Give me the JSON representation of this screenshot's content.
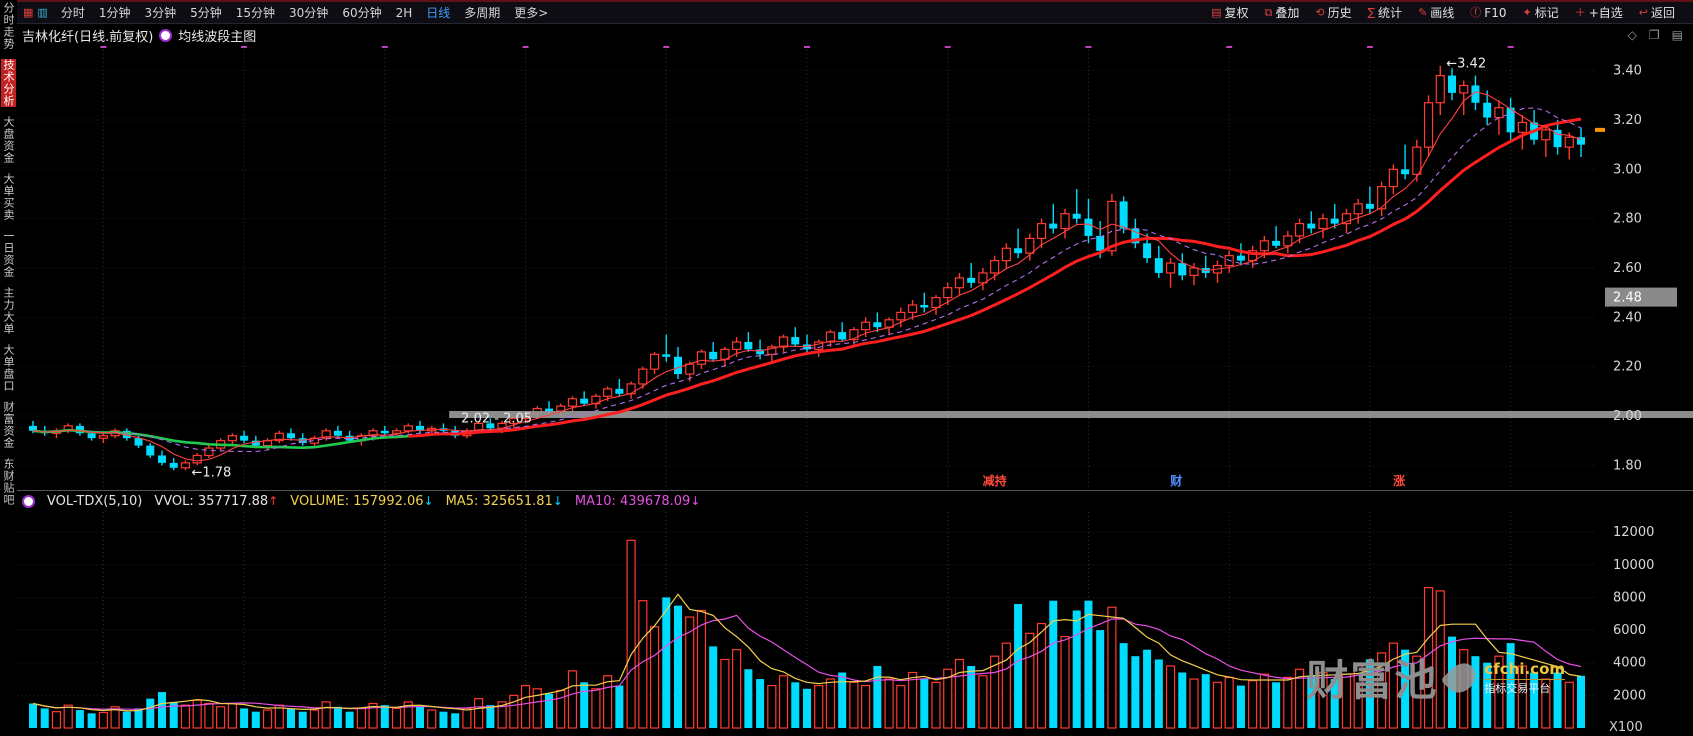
{
  "toolbar": {
    "left_icons": [
      {
        "name": "grid-icon",
        "glyph": "▦",
        "color": "#e04040"
      },
      {
        "name": "kline-icon",
        "glyph": "▥",
        "color": "#38b6d8"
      }
    ],
    "left_items": [
      "分时",
      "1分钟",
      "3分钟",
      "5分钟",
      "15分钟",
      "30分钟",
      "60分钟",
      "2H",
      "日线",
      "多周期",
      "更多>"
    ],
    "active_item": "日线",
    "right_items": [
      {
        "label": "复权",
        "icon": "adjust-icon",
        "glyph": "▤"
      },
      {
        "label": "叠加",
        "icon": "overlay-icon",
        "glyph": "⧉"
      },
      {
        "label": "历史",
        "icon": "history-icon",
        "glyph": "⟲"
      },
      {
        "label": "统计",
        "icon": "stats-icon",
        "glyph": "∑"
      },
      {
        "label": "画线",
        "icon": "draw-line-icon",
        "glyph": "✎"
      },
      {
        "label": "F10",
        "icon": "f10-icon",
        "glyph": "ⓕ"
      },
      {
        "label": "标记",
        "icon": "mark-icon",
        "glyph": "✦"
      },
      {
        "label": "+自选",
        "icon": "add-favorite-icon",
        "glyph": "＋"
      },
      {
        "label": "返回",
        "icon": "back-icon",
        "glyph": "↩"
      }
    ]
  },
  "sidebar": {
    "items": [
      "分时走势",
      "技术分析",
      "大盘资金",
      "大单买卖",
      "一日资金",
      "主力大单",
      "大单盘口",
      "财富资金",
      "东财贴吧"
    ],
    "active": "技术分析"
  },
  "chart_header": {
    "title": "吉林化纤(日线.前复权)",
    "indicator": "均线波段主图",
    "corner_icons": [
      {
        "name": "diamond-icon",
        "glyph": "◇"
      },
      {
        "name": "restore-window-icon",
        "glyph": "❐"
      },
      {
        "name": "panel-icon",
        "glyph": "▤"
      }
    ]
  },
  "volume_header": {
    "indicator": "VOL-TDX(5,10)",
    "vvol": "VVOL: 357717.88",
    "volume": "VOLUME: 157992.06",
    "ma5": "MA5: 325651.81",
    "ma10": "MA10: 439678.09"
  },
  "watermark": {
    "name": "财富池",
    "domain": "cfchi.com",
    "tagline": "指标交易平台"
  },
  "colors": {
    "up": "#ff3b30",
    "down": "#00dcff",
    "ma_fast": "#ff4040",
    "ma_mid": "#b06ef0",
    "trend_up": "#ff1f1f",
    "trend_down": "#1ecb4f",
    "vol_ma5": "#f2d14b",
    "vol_ma10": "#e750e7",
    "band": "#9b9b9b",
    "grid": "#262626",
    "vgrid": "#2e2e2e",
    "axis_text": "#d8d8d8",
    "tick_magenta": "#c040c0",
    "last_price": "#ff9500",
    "highlight_box": "#8a8a8a"
  },
  "chart_data": {
    "type": "candlestick",
    "symbol": "吉林化纤",
    "period": "日线",
    "adjust": "前复权",
    "price_range": [
      1.7,
      3.5
    ],
    "price_gridlines": [
      1.8,
      2.0,
      2.2,
      2.4,
      2.6,
      2.8,
      3.0,
      3.2,
      3.4
    ],
    "axis_highlight_price": 2.48,
    "last_price_tick": 3.16,
    "support_band": {
      "price": 2.0,
      "start_index": 36
    },
    "annotations": [
      {
        "text": "←1.78",
        "i": 13,
        "price": 1.77
      },
      {
        "text": "2.02 - 2.05",
        "i": 36,
        "price": 1.99
      },
      {
        "text": "←3.42",
        "i": 120,
        "price": 3.43
      }
    ],
    "events": [
      {
        "label": "减持",
        "i": 82,
        "color": "#ff4a3a"
      },
      {
        "label": "财",
        "i": 98,
        "color": "#4f8fff"
      },
      {
        "label": "涨",
        "i": 117,
        "color": "#ff4a3a"
      }
    ],
    "trend_split_index": 32,
    "ma_periods": {
      "fast": 5,
      "mid": 10,
      "slow": 15
    },
    "volume_range": [
      0,
      12500
    ],
    "volume_gridlines": [
      2000,
      4000,
      6000,
      8000,
      10000,
      12000
    ],
    "volume_unit": "X100",
    "volume_ma_periods": [
      5,
      10
    ],
    "candles": [
      [
        1.96,
        1.98,
        1.93,
        1.94
      ],
      [
        1.94,
        1.96,
        1.92,
        1.93
      ],
      [
        1.93,
        1.95,
        1.91,
        1.94
      ],
      [
        1.94,
        1.97,
        1.93,
        1.96
      ],
      [
        1.96,
        1.97,
        1.92,
        1.93
      ],
      [
        1.93,
        1.94,
        1.9,
        1.91
      ],
      [
        1.91,
        1.93,
        1.89,
        1.92
      ],
      [
        1.92,
        1.95,
        1.91,
        1.94
      ],
      [
        1.94,
        1.95,
        1.9,
        1.91
      ],
      [
        1.91,
        1.92,
        1.87,
        1.88
      ],
      [
        1.88,
        1.89,
        1.83,
        1.84
      ],
      [
        1.84,
        1.86,
        1.8,
        1.81
      ],
      [
        1.81,
        1.83,
        1.78,
        1.79
      ],
      [
        1.79,
        1.82,
        1.78,
        1.81
      ],
      [
        1.81,
        1.85,
        1.8,
        1.84
      ],
      [
        1.84,
        1.88,
        1.83,
        1.87
      ],
      [
        1.87,
        1.91,
        1.86,
        1.9
      ],
      [
        1.9,
        1.93,
        1.88,
        1.92
      ],
      [
        1.92,
        1.94,
        1.89,
        1.9
      ],
      [
        1.9,
        1.92,
        1.87,
        1.88
      ],
      [
        1.88,
        1.91,
        1.86,
        1.9
      ],
      [
        1.9,
        1.94,
        1.89,
        1.93
      ],
      [
        1.93,
        1.95,
        1.9,
        1.91
      ],
      [
        1.91,
        1.93,
        1.88,
        1.89
      ],
      [
        1.89,
        1.92,
        1.87,
        1.91
      ],
      [
        1.91,
        1.95,
        1.9,
        1.94
      ],
      [
        1.94,
        1.96,
        1.91,
        1.92
      ],
      [
        1.92,
        1.94,
        1.89,
        1.9
      ],
      [
        1.9,
        1.93,
        1.88,
        1.92
      ],
      [
        1.92,
        1.95,
        1.9,
        1.94
      ],
      [
        1.94,
        1.96,
        1.92,
        1.93
      ],
      [
        1.93,
        1.95,
        1.91,
        1.94
      ],
      [
        1.94,
        1.97,
        1.93,
        1.96
      ],
      [
        1.96,
        1.98,
        1.93,
        1.94
      ],
      [
        1.94,
        1.96,
        1.92,
        1.95
      ],
      [
        1.95,
        1.97,
        1.93,
        1.94
      ],
      [
        1.94,
        1.96,
        1.91,
        1.92
      ],
      [
        1.92,
        1.95,
        1.91,
        1.94
      ],
      [
        1.94,
        1.98,
        1.93,
        1.97
      ],
      [
        1.97,
        1.99,
        1.94,
        1.95
      ],
      [
        1.95,
        1.98,
        1.93,
        1.97
      ],
      [
        1.97,
        2.0,
        1.95,
        1.99
      ],
      [
        1.99,
        2.02,
        1.97,
        2.01
      ],
      [
        2.01,
        2.04,
        1.99,
        2.03
      ],
      [
        2.03,
        2.06,
        2.0,
        2.02
      ],
      [
        2.02,
        2.05,
        2.0,
        2.04
      ],
      [
        2.04,
        2.08,
        2.02,
        2.07
      ],
      [
        2.07,
        2.1,
        2.04,
        2.05
      ],
      [
        2.05,
        2.09,
        2.03,
        2.08
      ],
      [
        2.08,
        2.12,
        2.06,
        2.11
      ],
      [
        2.11,
        2.15,
        2.08,
        2.09
      ],
      [
        2.09,
        2.14,
        2.07,
        2.13
      ],
      [
        2.13,
        2.2,
        2.11,
        2.19
      ],
      [
        2.19,
        2.26,
        2.17,
        2.25
      ],
      [
        2.25,
        2.33,
        2.22,
        2.24
      ],
      [
        2.24,
        2.28,
        2.15,
        2.17
      ],
      [
        2.17,
        2.22,
        2.14,
        2.21
      ],
      [
        2.21,
        2.27,
        2.19,
        2.26
      ],
      [
        2.26,
        2.3,
        2.22,
        2.23
      ],
      [
        2.23,
        2.28,
        2.2,
        2.27
      ],
      [
        2.27,
        2.32,
        2.24,
        2.3
      ],
      [
        2.3,
        2.34,
        2.26,
        2.27
      ],
      [
        2.27,
        2.31,
        2.23,
        2.25
      ],
      [
        2.25,
        2.29,
        2.22,
        2.28
      ],
      [
        2.28,
        2.33,
        2.26,
        2.32
      ],
      [
        2.32,
        2.36,
        2.28,
        2.29
      ],
      [
        2.29,
        2.33,
        2.25,
        2.27
      ],
      [
        2.27,
        2.31,
        2.24,
        2.3
      ],
      [
        2.3,
        2.35,
        2.28,
        2.34
      ],
      [
        2.34,
        2.38,
        2.3,
        2.31
      ],
      [
        2.31,
        2.36,
        2.29,
        2.35
      ],
      [
        2.35,
        2.4,
        2.32,
        2.38
      ],
      [
        2.38,
        2.42,
        2.34,
        2.36
      ],
      [
        2.36,
        2.4,
        2.33,
        2.39
      ],
      [
        2.39,
        2.44,
        2.36,
        2.42
      ],
      [
        2.42,
        2.47,
        2.39,
        2.45
      ],
      [
        2.45,
        2.5,
        2.42,
        2.44
      ],
      [
        2.44,
        2.49,
        2.41,
        2.48
      ],
      [
        2.48,
        2.54,
        2.45,
        2.52
      ],
      [
        2.52,
        2.58,
        2.49,
        2.56
      ],
      [
        2.56,
        2.62,
        2.52,
        2.54
      ],
      [
        2.54,
        2.6,
        2.51,
        2.58
      ],
      [
        2.58,
        2.65,
        2.55,
        2.63
      ],
      [
        2.63,
        2.7,
        2.6,
        2.68
      ],
      [
        2.68,
        2.76,
        2.64,
        2.66
      ],
      [
        2.66,
        2.74,
        2.63,
        2.72
      ],
      [
        2.72,
        2.8,
        2.68,
        2.78
      ],
      [
        2.78,
        2.86,
        2.74,
        2.76
      ],
      [
        2.76,
        2.84,
        2.72,
        2.82
      ],
      [
        2.82,
        2.92,
        2.78,
        2.8
      ],
      [
        2.8,
        2.88,
        2.7,
        2.73
      ],
      [
        2.73,
        2.79,
        2.64,
        2.67
      ],
      [
        2.67,
        2.9,
        2.65,
        2.87
      ],
      [
        2.87,
        2.89,
        2.74,
        2.76
      ],
      [
        2.76,
        2.8,
        2.68,
        2.7
      ],
      [
        2.7,
        2.74,
        2.62,
        2.64
      ],
      [
        2.64,
        2.69,
        2.56,
        2.58
      ],
      [
        2.58,
        2.64,
        2.52,
        2.62
      ],
      [
        2.62,
        2.66,
        2.55,
        2.57
      ],
      [
        2.57,
        2.62,
        2.53,
        2.6
      ],
      [
        2.6,
        2.65,
        2.56,
        2.58
      ],
      [
        2.58,
        2.63,
        2.54,
        2.61
      ],
      [
        2.61,
        2.67,
        2.58,
        2.65
      ],
      [
        2.65,
        2.7,
        2.61,
        2.63
      ],
      [
        2.63,
        2.69,
        2.6,
        2.67
      ],
      [
        2.67,
        2.73,
        2.64,
        2.71
      ],
      [
        2.71,
        2.77,
        2.68,
        2.69
      ],
      [
        2.69,
        2.75,
        2.66,
        2.73
      ],
      [
        2.73,
        2.8,
        2.7,
        2.78
      ],
      [
        2.78,
        2.83,
        2.74,
        2.76
      ],
      [
        2.76,
        2.82,
        2.72,
        2.8
      ],
      [
        2.8,
        2.86,
        2.76,
        2.78
      ],
      [
        2.78,
        2.84,
        2.74,
        2.82
      ],
      [
        2.82,
        2.88,
        2.78,
        2.86
      ],
      [
        2.86,
        2.93,
        2.82,
        2.84
      ],
      [
        2.84,
        2.95,
        2.81,
        2.93
      ],
      [
        2.93,
        3.02,
        2.9,
        3.0
      ],
      [
        3.0,
        3.1,
        2.96,
        2.98
      ],
      [
        2.98,
        3.12,
        2.95,
        3.09
      ],
      [
        3.09,
        3.3,
        3.05,
        3.27
      ],
      [
        3.27,
        3.42,
        3.22,
        3.38
      ],
      [
        3.38,
        3.41,
        3.28,
        3.31
      ],
      [
        3.31,
        3.36,
        3.22,
        3.34
      ],
      [
        3.34,
        3.38,
        3.24,
        3.27
      ],
      [
        3.27,
        3.32,
        3.18,
        3.21
      ],
      [
        3.21,
        3.28,
        3.14,
        3.25
      ],
      [
        3.25,
        3.29,
        3.12,
        3.15
      ],
      [
        3.15,
        3.22,
        3.08,
        3.19
      ],
      [
        3.19,
        3.24,
        3.1,
        3.12
      ],
      [
        3.12,
        3.18,
        3.05,
        3.16
      ],
      [
        3.16,
        3.2,
        3.06,
        3.09
      ],
      [
        3.09,
        3.15,
        3.04,
        3.13
      ],
      [
        3.13,
        3.17,
        3.05,
        3.1
      ]
    ],
    "volumes": [
      1500,
      1200,
      1000,
      1400,
      1100,
      900,
      950,
      1300,
      1000,
      1200,
      1800,
      2200,
      1600,
      1400,
      1700,
      1500,
      1300,
      1500,
      1200,
      1000,
      1100,
      1400,
      1200,
      1000,
      1100,
      1600,
      1300,
      1000,
      1200,
      1500,
      1400,
      1200,
      1600,
      1300,
      1100,
      1000,
      900,
      1200,
      1800,
      1400,
      1600,
      2000,
      2600,
      2400,
      2100,
      2300,
      3500,
      2800,
      2400,
      3200,
      2600,
      11500,
      7800,
      6200,
      8000,
      7500,
      6800,
      7200,
      5000,
      4200,
      4800,
      3600,
      3000,
      2600,
      3200,
      2800,
      2400,
      2600,
      3000,
      3400,
      2800,
      2600,
      3800,
      3000,
      2600,
      3400,
      3000,
      2800,
      3600,
      4200,
      3800,
      3200,
      4400,
      5200,
      7600,
      5800,
      6400,
      7800,
      5600,
      7200,
      7800,
      6000,
      7400,
      5200,
      4400,
      4800,
      4200,
      3800,
      3400,
      3000,
      3300,
      2800,
      3100,
      2600,
      2900,
      3300,
      2800,
      3100,
      3600,
      3200,
      3400,
      3000,
      3300,
      3800,
      4200,
      4600,
      5200,
      4800,
      4400,
      8600,
      8400,
      5600,
      4800,
      4400,
      4000,
      4400,
      5200,
      3800,
      3400,
      3000,
      3400,
      2800,
      3200
    ]
  }
}
